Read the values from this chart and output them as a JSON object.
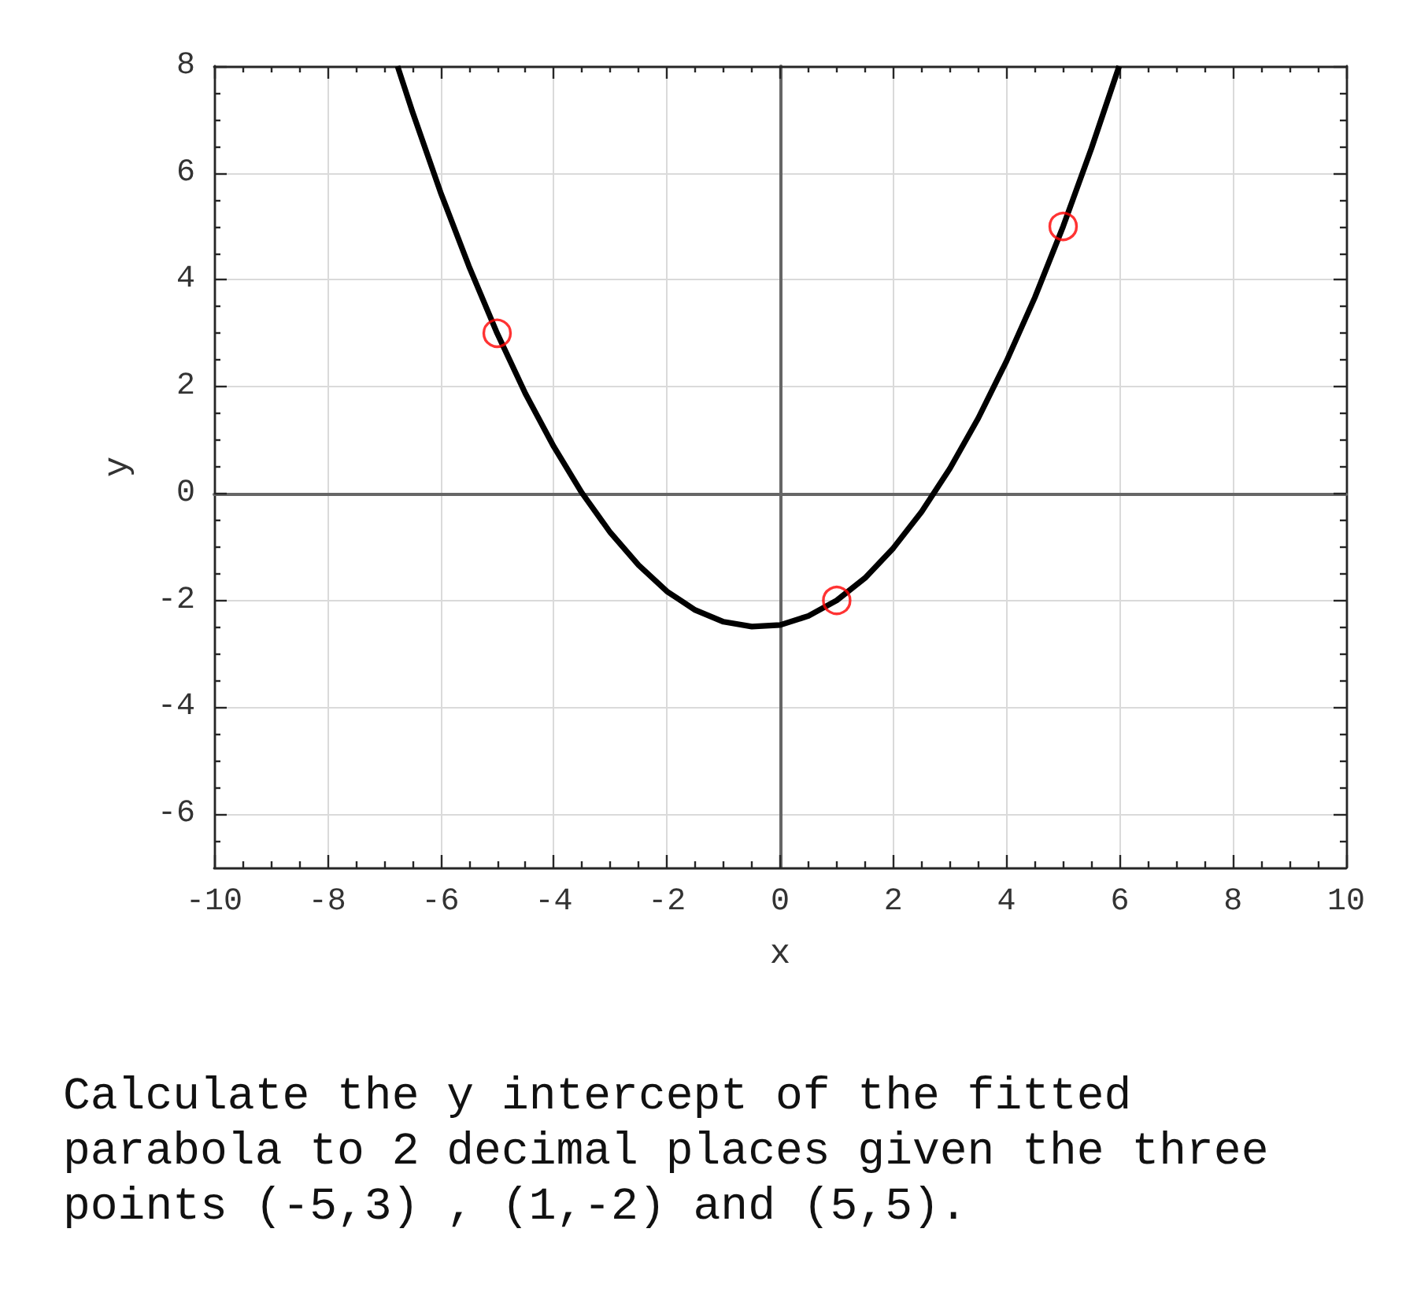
{
  "chart_data": {
    "type": "line",
    "xlabel": "x",
    "ylabel": "y",
    "annotations": [
      "Calculate the y intercept of the fitted parabola to 2 decimal places given the three points (-5,3) , (1,-2) and (5,5)."
    ],
    "series": [
      {
        "type": "line",
        "color": "#000000",
        "marker": "none",
        "x": [
          -6.76,
          -6.5,
          -6,
          -5.5,
          -5,
          -4.5,
          -4,
          -3.5,
          -3,
          -2.5,
          -2,
          -1.5,
          -1,
          -0.5,
          0,
          0.5,
          1,
          1.5,
          2,
          2.5,
          3,
          3.5,
          4,
          4.5,
          5,
          5.5,
          5.99
        ],
        "values": [
          8,
          7.16,
          5.64,
          4.26,
          3,
          1.87,
          0.88,
          0.01,
          -0.73,
          -1.34,
          -1.83,
          -2.18,
          -2.4,
          -2.49,
          -2.46,
          -2.29,
          -2,
          -1.58,
          -1.02,
          -0.34,
          0.47,
          1.41,
          2.48,
          3.67,
          5,
          6.46,
          8
        ]
      },
      {
        "type": "scatter",
        "color": "#ff0000",
        "marker": "circle",
        "x": [
          -5,
          1,
          5
        ],
        "values": [
          3,
          -2,
          5
        ]
      }
    ],
    "xlim": [
      -10,
      10
    ],
    "xticks": [
      -10,
      {
        "value": -9.5,
        "label": null
      },
      {
        "value": -9,
        "label": null
      },
      {
        "value": -8.5,
        "label": null
      },
      -8,
      {
        "value": -7.5,
        "label": null
      },
      {
        "value": -7,
        "label": null
      },
      {
        "value": -6.5,
        "label": null
      },
      -6,
      {
        "value": -5.5,
        "label": null
      },
      {
        "value": -5,
        "label": null
      },
      {
        "value": -4.5,
        "label": null
      },
      -4,
      {
        "value": -3.5,
        "label": null
      },
      {
        "value": -3,
        "label": null
      },
      {
        "value": -2.5,
        "label": null
      },
      -2,
      {
        "value": -1.5,
        "label": null
      },
      {
        "value": -1,
        "label": null
      },
      {
        "value": -0.5,
        "label": null
      },
      0,
      {
        "value": 0.5,
        "label": null
      },
      {
        "value": 1,
        "label": null
      },
      {
        "value": 1.5,
        "label": null
      },
      2,
      {
        "value": 2.5,
        "label": null
      },
      {
        "value": 3,
        "label": null
      },
      {
        "value": 3.5,
        "label": null
      },
      4,
      {
        "value": 4.5,
        "label": null
      },
      {
        "value": 5,
        "label": null
      },
      {
        "value": 5.5,
        "label": null
      },
      6,
      {
        "value": 6.5,
        "label": null
      },
      {
        "value": 7,
        "label": null
      },
      {
        "value": 7.5,
        "label": null
      },
      8,
      {
        "value": 8.5,
        "label": null
      },
      {
        "value": 9,
        "label": null
      },
      {
        "value": 9.5,
        "label": null
      },
      10
    ],
    "ylim": [
      -7,
      8
    ],
    "yticks": [
      {
        "value": -6.5,
        "label": null
      },
      -6,
      {
        "value": -5.5,
        "label": null
      },
      {
        "value": -5,
        "label": null
      },
      {
        "value": -4.5,
        "label": null
      },
      -4,
      {
        "value": -3.5,
        "label": null
      },
      {
        "value": -3,
        "label": null
      },
      {
        "value": -2.5,
        "label": null
      },
      -2,
      {
        "value": -1.5,
        "label": null
      },
      {
        "value": -1,
        "label": null
      },
      {
        "value": -0.5,
        "label": null
      },
      0,
      {
        "value": 0.5,
        "label": null
      },
      {
        "value": 1,
        "label": null
      },
      {
        "value": 1.5,
        "label": null
      },
      2,
      {
        "value": 2.5,
        "label": null
      },
      {
        "value": 3,
        "label": null
      },
      {
        "value": 3.5,
        "label": null
      },
      4,
      {
        "value": 4.5,
        "label": null
      },
      {
        "value": 5,
        "label": null
      },
      {
        "value": 5.5,
        "label": null
      },
      6,
      {
        "value": 6.5,
        "label": null
      },
      {
        "value": 7,
        "label": null
      },
      {
        "value": 7.5,
        "label": null
      },
      8
    ],
    "grid": true
  }
}
